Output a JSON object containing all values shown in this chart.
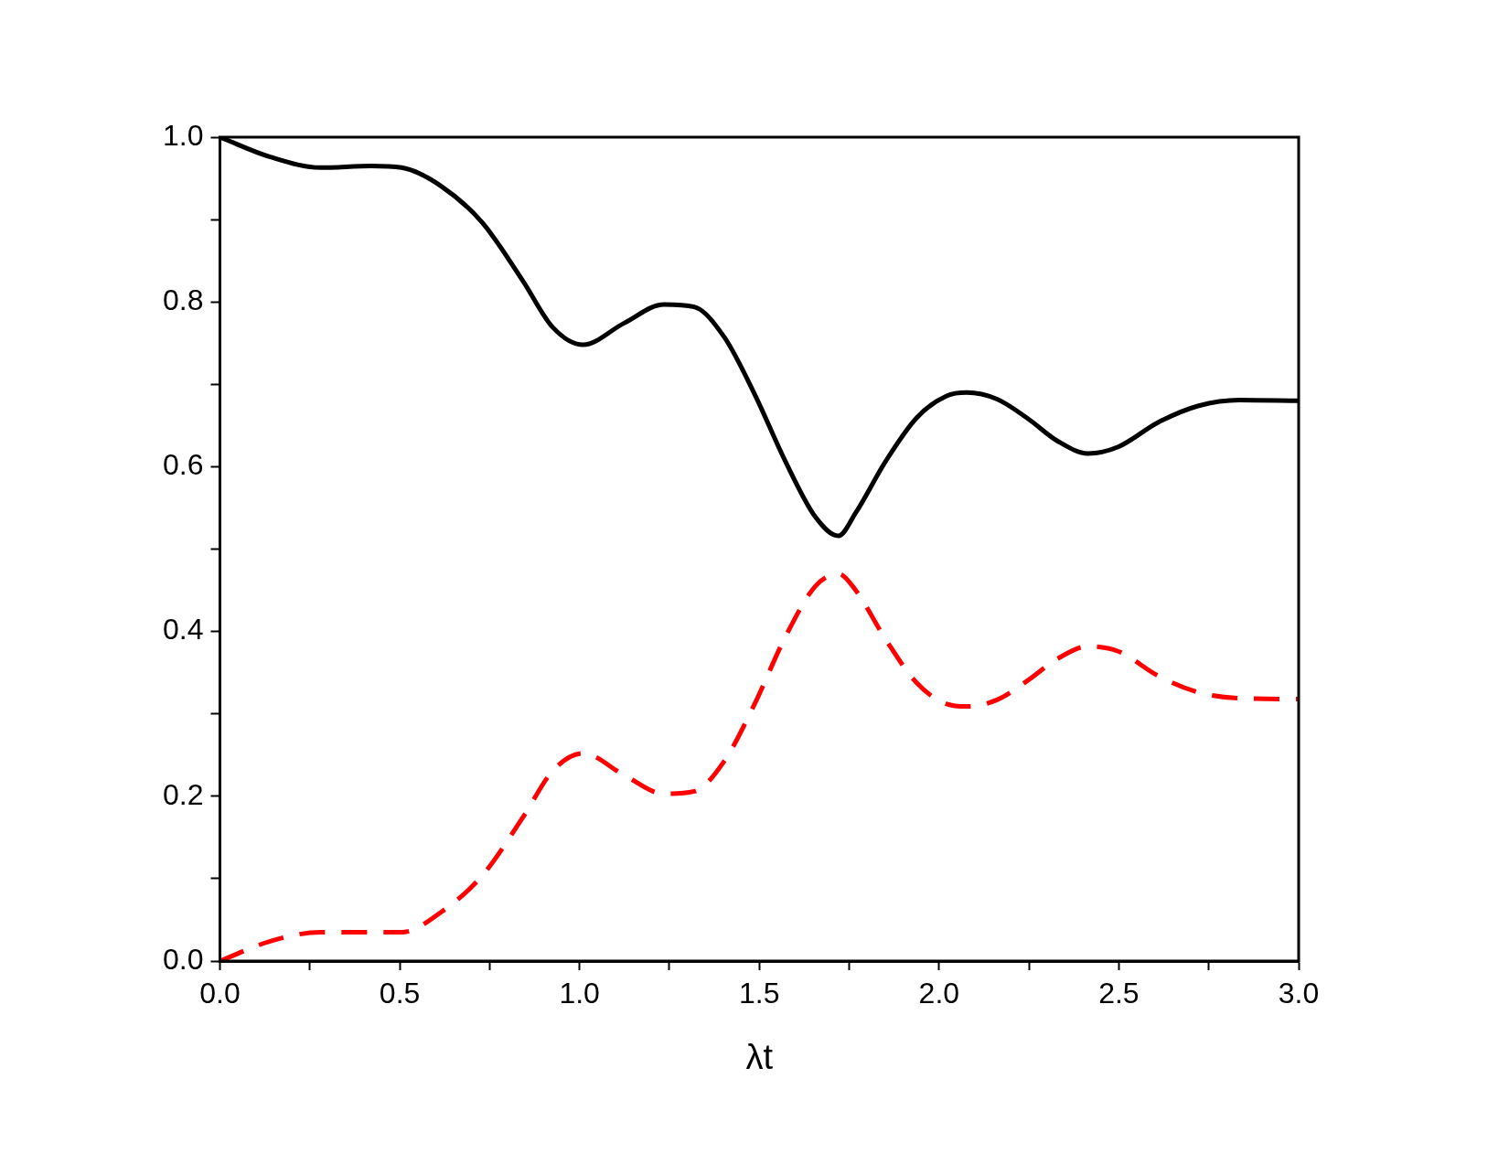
{
  "chart_data": {
    "type": "line",
    "xlabel": "λt",
    "xlim": [
      0,
      3.0
    ],
    "xticks": [
      {
        "value": 0,
        "label": "0.0"
      },
      {
        "value": 0.25,
        "label": null
      },
      {
        "value": 0.5,
        "label": "0.5"
      },
      {
        "value": 0.75,
        "label": null
      },
      {
        "value": 1.0,
        "label": "1.0"
      },
      {
        "value": 1.25,
        "label": null
      },
      {
        "value": 1.5,
        "label": "1.5"
      },
      {
        "value": 1.75,
        "label": null
      },
      {
        "value": 2.0,
        "label": "2.0"
      },
      {
        "value": 2.25,
        "label": null
      },
      {
        "value": 2.5,
        "label": "2.5"
      },
      {
        "value": 2.75,
        "label": null
      },
      {
        "value": 3.0,
        "label": "3.0"
      }
    ],
    "ylim": [
      0,
      1.0
    ],
    "yticks": [
      {
        "value": 0,
        "label": "0.0"
      },
      {
        "value": 0.1,
        "label": null
      },
      {
        "value": 0.2,
        "label": "0.2"
      },
      {
        "value": 0.3,
        "label": null
      },
      {
        "value": 0.4,
        "label": "0.4"
      },
      {
        "value": 0.5,
        "label": null
      },
      {
        "value": 0.6,
        "label": "0.6"
      },
      {
        "value": 0.7,
        "label": null
      },
      {
        "value": 0.8,
        "label": "0.8"
      },
      {
        "value": 0.9,
        "label": null
      },
      {
        "value": 1.0,
        "label": "1.0"
      }
    ],
    "x": [
      0,
      0.14,
      0.28,
      0.42,
      0.505,
      0.617,
      0.73,
      0.842,
      0.926,
      1.01,
      1.123,
      1.235,
      1.319,
      1.403,
      1.487,
      1.572,
      1.656,
      1.72,
      1.768,
      1.852,
      1.937,
      2.021,
      2.077,
      2.161,
      2.245,
      2.33,
      2.414,
      2.498,
      2.61,
      2.722,
      2.835,
      3.0
    ],
    "series": [
      {
        "color": "#000000",
        "line_style": "solid",
        "values": [
          1.0,
          0.976,
          0.963,
          0.965,
          0.963,
          0.94,
          0.896,
          0.826,
          0.769,
          0.748,
          0.774,
          0.797,
          0.794,
          0.757,
          0.688,
          0.607,
          0.539,
          0.516,
          0.544,
          0.607,
          0.659,
          0.686,
          0.69,
          0.682,
          0.659,
          0.631,
          0.616,
          0.624,
          0.654,
          0.674,
          0.681,
          0.68
        ]
      },
      {
        "color": "#ff0000",
        "line_style": "dashed",
        "values": [
          0,
          0.024,
          0.035,
          0.035,
          0.035,
          0.06,
          0.104,
          0.174,
          0.231,
          0.252,
          0.226,
          0.203,
          0.206,
          0.243,
          0.312,
          0.393,
          0.455,
          0.47,
          0.45,
          0.39,
          0.338,
          0.312,
          0.309,
          0.317,
          0.34,
          0.367,
          0.382,
          0.376,
          0.346,
          0.326,
          0.319,
          0.318
        ]
      }
    ],
    "legend": false,
    "grid": false
  }
}
